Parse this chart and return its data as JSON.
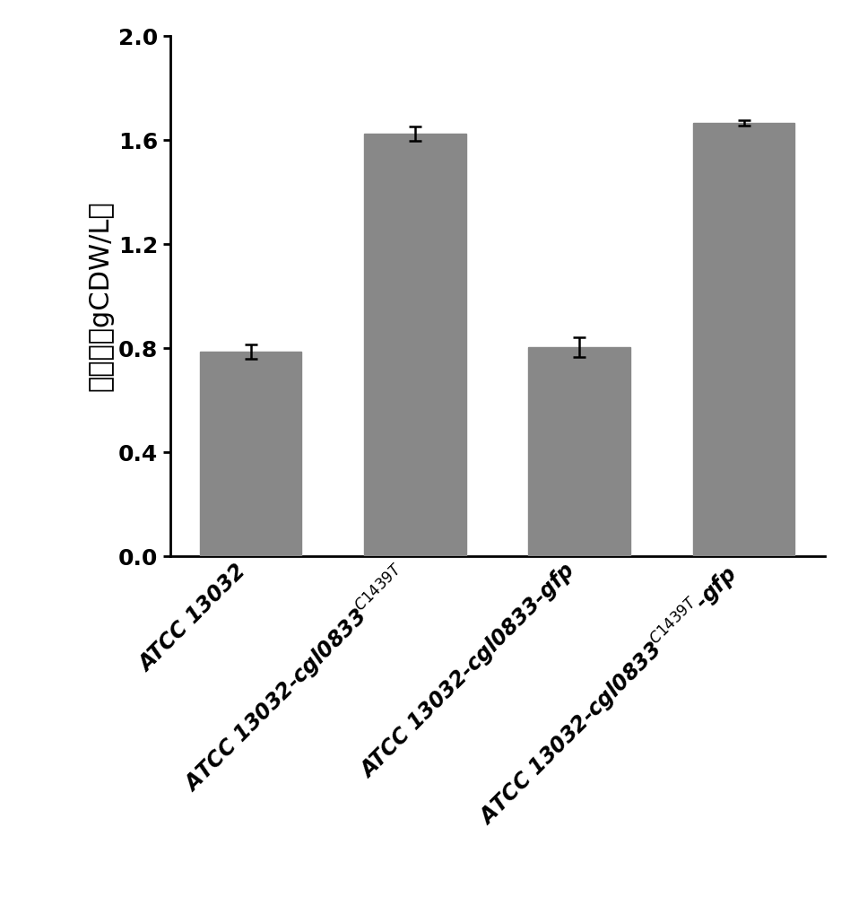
{
  "values": [
    0.785,
    1.625,
    0.805,
    1.665
  ],
  "errors": [
    0.028,
    0.028,
    0.038,
    0.01
  ],
  "bar_color": "#888888",
  "bar_width": 0.62,
  "ylim": [
    0.0,
    2.0
  ],
  "yticks": [
    0.0,
    0.4,
    0.8,
    1.2,
    1.6,
    2.0
  ],
  "ylabel": "生物量（gCDW/L）",
  "ylabel_fontsize": 22,
  "tick_fontsize": 17,
  "ytick_fontsize": 18,
  "background_color": "#ffffff",
  "error_capsize": 5,
  "error_linewidth": 1.8,
  "error_color": "black",
  "spine_linewidth": 2.0
}
